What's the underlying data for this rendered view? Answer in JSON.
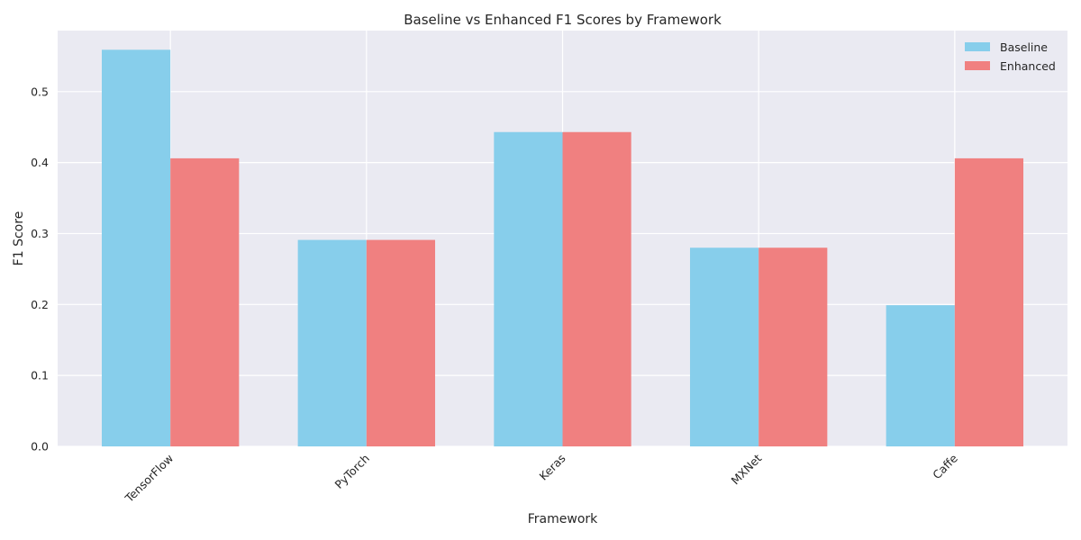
{
  "chart_data": {
    "type": "bar",
    "title": "Baseline vs Enhanced F1 Scores by Framework",
    "xlabel": "Framework",
    "ylabel": "F1 Score",
    "categories": [
      "TensorFlow",
      "PyTorch",
      "Keras",
      "MXNet",
      "Caffe"
    ],
    "series": [
      {
        "name": "Baseline",
        "values": [
          0.559,
          0.291,
          0.443,
          0.28,
          0.199
        ],
        "color": "#87CEEB"
      },
      {
        "name": "Enhanced",
        "values": [
          0.406,
          0.291,
          0.443,
          0.28,
          0.406
        ],
        "color": "#F08080"
      }
    ],
    "ylim": [
      0,
      0.586
    ],
    "yticks": [
      0.0,
      0.1,
      0.2,
      0.3,
      0.4,
      0.5
    ],
    "ytick_labels": [
      "0.0",
      "0.1",
      "0.2",
      "0.3",
      "0.4",
      "0.5"
    ],
    "grid": true,
    "legend_position": "top-right",
    "background_color": "#EAEAF2",
    "grid_color": "#FFFFFF"
  }
}
